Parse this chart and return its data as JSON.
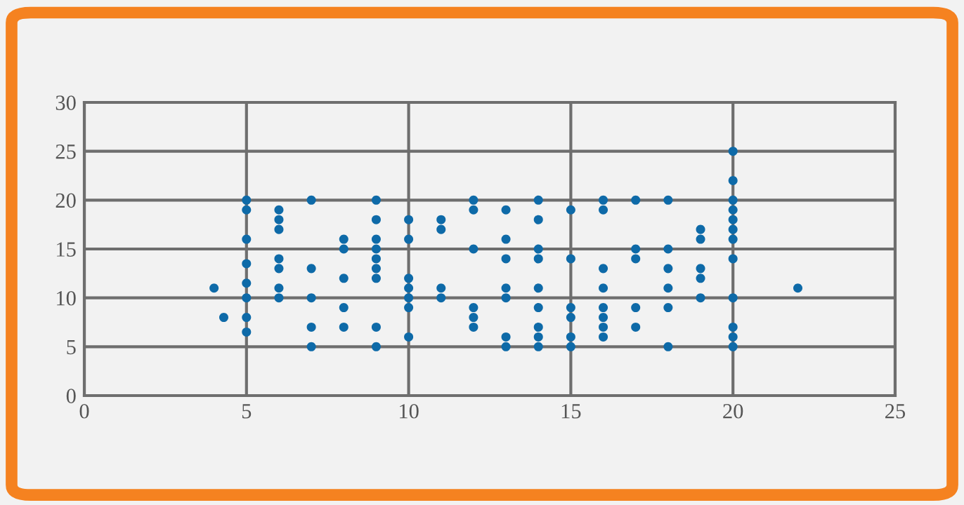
{
  "chart_data": {
    "type": "scatter",
    "series": [
      {
        "color": "#0e6aa8",
        "x": [
          4,
          4.3,
          5,
          5,
          5,
          5,
          5,
          5,
          5,
          5,
          6,
          6,
          6,
          6,
          6,
          6,
          6,
          7,
          7,
          7,
          7,
          7,
          8,
          8,
          8,
          8,
          8,
          9,
          9,
          9,
          9,
          9,
          9,
          9,
          9,
          9,
          10,
          10,
          10,
          10,
          10,
          10,
          10,
          11,
          11,
          11,
          11,
          12,
          12,
          12,
          12,
          12,
          12,
          13,
          13,
          13,
          13,
          13,
          13,
          13,
          14,
          14,
          14,
          14,
          14,
          14,
          14,
          14,
          14,
          15,
          15,
          15,
          15,
          15,
          15,
          16,
          16,
          16,
          16,
          16,
          16,
          16,
          16,
          17,
          17,
          17,
          17,
          17,
          18,
          18,
          18,
          18,
          18,
          18,
          19,
          19,
          19,
          19,
          19,
          20,
          20,
          20,
          20,
          20,
          20,
          20,
          20,
          20,
          20,
          20,
          20,
          22
        ],
        "values": [
          11,
          8,
          20,
          19,
          16,
          13.5,
          11.5,
          10,
          8,
          6.5,
          19,
          18,
          17,
          14,
          13,
          11,
          10,
          20,
          13,
          10,
          7,
          5,
          16,
          15,
          12,
          9,
          7,
          20,
          18,
          16,
          15,
          14,
          13,
          12,
          7,
          5,
          18,
          16,
          12,
          11,
          10,
          9,
          6,
          18,
          17,
          11,
          10,
          20,
          19,
          15,
          9,
          8,
          7,
          19,
          16,
          14,
          11,
          10,
          6,
          5,
          20,
          18,
          15,
          14,
          11,
          9,
          7,
          6,
          5,
          19,
          14,
          9,
          8,
          6,
          5,
          20,
          19,
          13,
          11,
          9,
          8,
          7,
          6,
          20,
          15,
          14,
          9,
          7,
          20,
          15,
          13,
          11,
          9,
          5,
          17,
          16,
          13,
          12,
          10,
          25,
          22,
          20,
          19,
          18,
          17,
          16,
          14,
          10,
          7,
          6,
          5,
          11
        ]
      }
    ],
    "xlim": [
      0,
      25
    ],
    "ylim": [
      0,
      30
    ],
    "xticks": [
      0,
      5,
      10,
      15,
      20,
      25
    ],
    "yticks": [
      0,
      5,
      10,
      15,
      20,
      25,
      30
    ],
    "grid": true,
    "marker": "circle"
  }
}
